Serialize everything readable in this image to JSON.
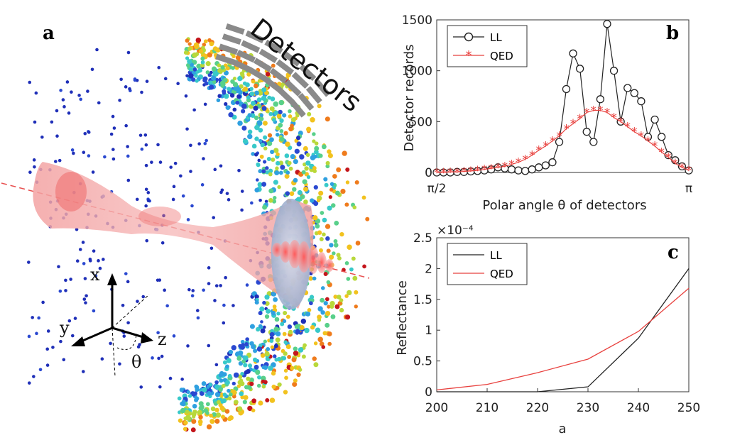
{
  "panel_a": {
    "label": "a",
    "detectors_label": "Detectors",
    "axis_x": "x",
    "axis_y": "y",
    "axis_z": "z",
    "angle_symbol": "θ"
  },
  "chart_data": [
    {
      "panel": "b",
      "type": "line",
      "title": "",
      "xlabel": "Polar angle θ of detectors",
      "ylabel": "Detector records",
      "xlim": [
        0,
        1
      ],
      "ylim": [
        0,
        1500
      ],
      "x_tick_labels": [
        "π/2",
        "π"
      ],
      "y_ticks": [
        0,
        500,
        1000,
        1500
      ],
      "legend_position": "top-left",
      "series": [
        {
          "name": "LL",
          "color": "#222222",
          "marker": "circle",
          "x": [
            0.0,
            0.027,
            0.054,
            0.081,
            0.108,
            0.135,
            0.162,
            0.189,
            0.216,
            0.243,
            0.27,
            0.297,
            0.324,
            0.351,
            0.378,
            0.405,
            0.432,
            0.459,
            0.486,
            0.514,
            0.541,
            0.568,
            0.595,
            0.622,
            0.649,
            0.676,
            0.703,
            0.73,
            0.757,
            0.784,
            0.811,
            0.838,
            0.865,
            0.892,
            0.919,
            0.946,
            0.973,
            1.0
          ],
          "values": [
            0,
            0,
            0,
            5,
            5,
            10,
            15,
            20,
            30,
            50,
            40,
            30,
            20,
            15,
            30,
            50,
            70,
            100,
            300,
            820,
            1170,
            1020,
            400,
            300,
            720,
            1460,
            1000,
            500,
            830,
            780,
            700,
            350,
            520,
            350,
            170,
            120,
            60,
            20
          ]
        },
        {
          "name": "QED",
          "color": "#e8413e",
          "marker": "star",
          "x": [
            0.0,
            0.027,
            0.054,
            0.081,
            0.108,
            0.135,
            0.162,
            0.189,
            0.216,
            0.243,
            0.27,
            0.297,
            0.324,
            0.351,
            0.378,
            0.405,
            0.432,
            0.459,
            0.486,
            0.514,
            0.541,
            0.568,
            0.595,
            0.622,
            0.649,
            0.676,
            0.703,
            0.73,
            0.757,
            0.784,
            0.811,
            0.838,
            0.865,
            0.892,
            0.919,
            0.946,
            0.973,
            1.0
          ],
          "values": [
            0,
            0,
            5,
            5,
            10,
            15,
            20,
            30,
            40,
            50,
            60,
            80,
            100,
            130,
            170,
            220,
            260,
            310,
            360,
            430,
            480,
            530,
            590,
            610,
            610,
            590,
            540,
            500,
            450,
            400,
            360,
            310,
            260,
            200,
            150,
            90,
            50,
            20
          ]
        }
      ]
    },
    {
      "panel": "c",
      "type": "line",
      "title": "",
      "xlabel": "a",
      "ylabel": "Reflectance",
      "exponent_label": "×10⁻⁴",
      "xlim": [
        200,
        250
      ],
      "ylim": [
        0,
        2.5
      ],
      "x_ticks": [
        200,
        210,
        220,
        230,
        240,
        250
      ],
      "y_ticks": [
        0,
        0.5,
        1,
        1.5,
        2,
        2.5
      ],
      "legend_position": "top-left",
      "series": [
        {
          "name": "LL",
          "color": "#222222",
          "x": [
            200,
            210,
            220,
            230,
            240,
            250
          ],
          "values": [
            0,
            0,
            0,
            0.08,
            0.87,
            2.0
          ]
        },
        {
          "name": "QED",
          "color": "#e8413e",
          "x": [
            200,
            210,
            220,
            230,
            240,
            250
          ],
          "values": [
            0.03,
            0.12,
            0.31,
            0.53,
            0.98,
            1.68
          ]
        }
      ]
    }
  ]
}
